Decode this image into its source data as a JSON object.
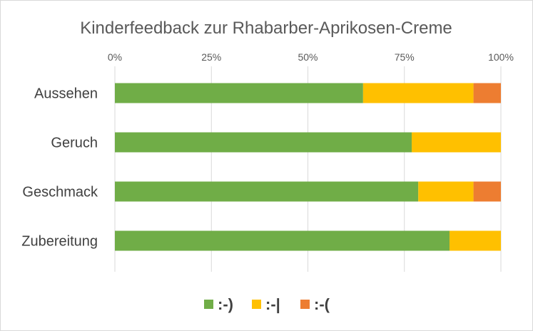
{
  "chart_data": {
    "type": "bar",
    "orientation": "horizontal",
    "stacked": "percent",
    "title": "Kinderfeedback zur Rhabarber-Aprikosen-Creme",
    "categories": [
      "Aussehen",
      "Geruch",
      "Geschmack",
      "Zubereitung"
    ],
    "series": [
      {
        "name": ":-)",
        "color": "#70ad47",
        "values": [
          64.3,
          76.9,
          78.6,
          86.7
        ]
      },
      {
        "name": ":-|",
        "color": "#ffc000",
        "values": [
          28.6,
          23.1,
          14.3,
          13.3
        ]
      },
      {
        "name": ":-(",
        "color": "#ed7d31",
        "values": [
          7.1,
          0,
          7.1,
          0
        ]
      }
    ],
    "xlim": [
      0,
      100
    ],
    "x_ticks": [
      "0%",
      "25%",
      "50%",
      "75%",
      "100%"
    ],
    "x_axis_position": "top",
    "grid": true,
    "legend_position": "bottom"
  }
}
